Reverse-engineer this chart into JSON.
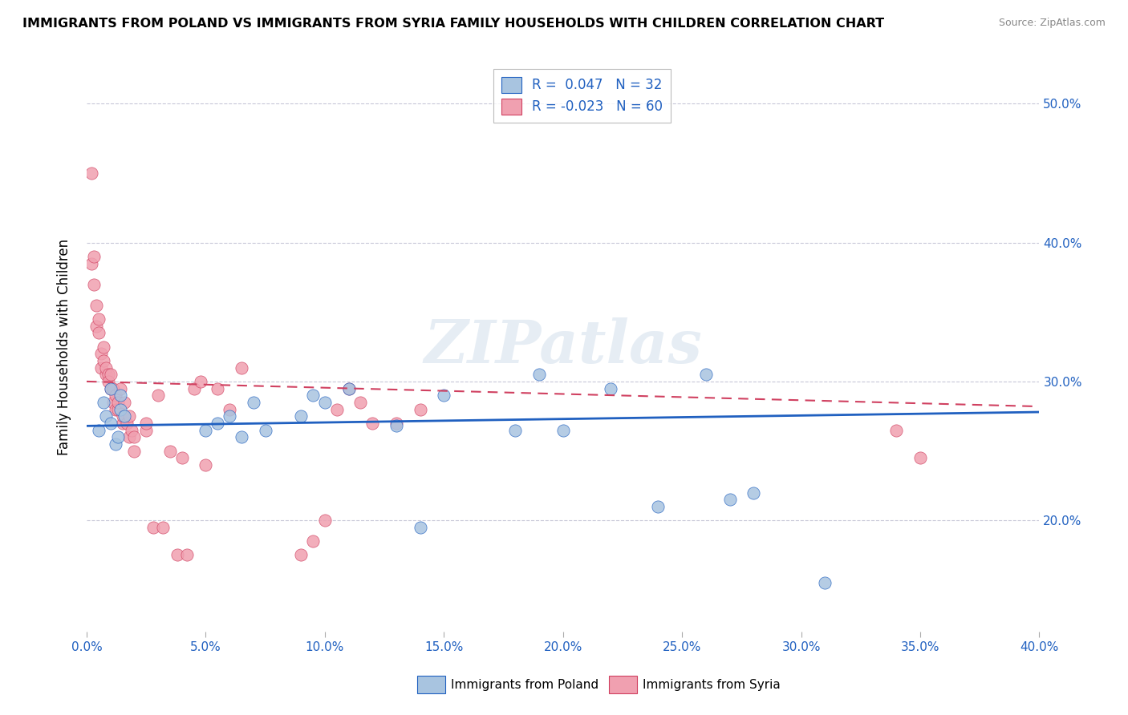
{
  "title": "IMMIGRANTS FROM POLAND VS IMMIGRANTS FROM SYRIA FAMILY HOUSEHOLDS WITH CHILDREN CORRELATION CHART",
  "source": "Source: ZipAtlas.com",
  "ylabel": "Family Households with Children",
  "ytick_labels": [
    "20.0%",
    "30.0%",
    "40.0%",
    "50.0%"
  ],
  "ytick_values": [
    0.2,
    0.3,
    0.4,
    0.5
  ],
  "xlim": [
    0.0,
    0.4
  ],
  "ylim": [
    0.12,
    0.53
  ],
  "poland_color": "#a8c4e0",
  "poland_line_color": "#2060c0",
  "syria_color": "#f0a0b0",
  "syria_line_color": "#d04060",
  "legend_text_color": "#2060c0",
  "watermark_text": "ZIPatlas",
  "poland_scatter_x": [
    0.005,
    0.007,
    0.008,
    0.01,
    0.01,
    0.012,
    0.013,
    0.014,
    0.014,
    0.016,
    0.05,
    0.055,
    0.06,
    0.065,
    0.07,
    0.075,
    0.09,
    0.095,
    0.1,
    0.11,
    0.13,
    0.14,
    0.15,
    0.18,
    0.19,
    0.2,
    0.22,
    0.24,
    0.26,
    0.27,
    0.28,
    0.31
  ],
  "poland_scatter_y": [
    0.265,
    0.285,
    0.275,
    0.27,
    0.295,
    0.255,
    0.26,
    0.29,
    0.28,
    0.275,
    0.265,
    0.27,
    0.275,
    0.26,
    0.285,
    0.265,
    0.275,
    0.29,
    0.285,
    0.295,
    0.268,
    0.195,
    0.29,
    0.265,
    0.305,
    0.265,
    0.295,
    0.21,
    0.305,
    0.215,
    0.22,
    0.155
  ],
  "syria_scatter_x": [
    0.002,
    0.002,
    0.003,
    0.003,
    0.004,
    0.004,
    0.005,
    0.005,
    0.006,
    0.006,
    0.007,
    0.007,
    0.008,
    0.008,
    0.009,
    0.009,
    0.01,
    0.01,
    0.011,
    0.011,
    0.012,
    0.012,
    0.013,
    0.013,
    0.014,
    0.015,
    0.015,
    0.016,
    0.017,
    0.018,
    0.018,
    0.019,
    0.02,
    0.02,
    0.025,
    0.025,
    0.028,
    0.03,
    0.032,
    0.035,
    0.038,
    0.04,
    0.042,
    0.045,
    0.048,
    0.05,
    0.055,
    0.06,
    0.065,
    0.09,
    0.095,
    0.1,
    0.105,
    0.11,
    0.115,
    0.12,
    0.13,
    0.14,
    0.34,
    0.35
  ],
  "syria_scatter_y": [
    0.45,
    0.385,
    0.39,
    0.37,
    0.34,
    0.355,
    0.345,
    0.335,
    0.32,
    0.31,
    0.325,
    0.315,
    0.305,
    0.31,
    0.305,
    0.3,
    0.295,
    0.305,
    0.295,
    0.285,
    0.29,
    0.28,
    0.28,
    0.285,
    0.295,
    0.27,
    0.275,
    0.285,
    0.27,
    0.26,
    0.275,
    0.265,
    0.26,
    0.25,
    0.265,
    0.27,
    0.195,
    0.29,
    0.195,
    0.25,
    0.175,
    0.245,
    0.175,
    0.295,
    0.3,
    0.24,
    0.295,
    0.28,
    0.31,
    0.175,
    0.185,
    0.2,
    0.28,
    0.295,
    0.285,
    0.27,
    0.27,
    0.28,
    0.265,
    0.245
  ],
  "poland_trend_x": [
    0.0,
    0.4
  ],
  "poland_trend_y": [
    0.268,
    0.278
  ],
  "syria_trend_x": [
    0.0,
    0.4
  ],
  "syria_trend_y": [
    0.3,
    0.282
  ],
  "background_color": "#ffffff",
  "grid_color": "#c8c8d8",
  "figsize": [
    14.06,
    8.92
  ]
}
